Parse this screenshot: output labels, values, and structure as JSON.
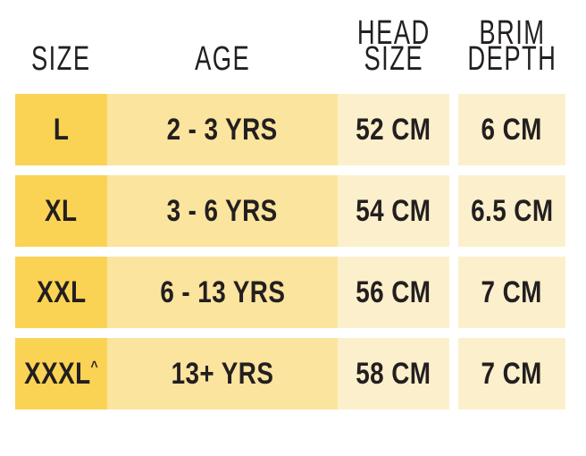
{
  "page": {
    "background": "#FFFFFF"
  },
  "colors": {
    "size_column_fill": "#FBD354",
    "age_column_fill": "#FBE49E",
    "value_column_fill": "#FCF0CC",
    "gutter": "#FFFFFF",
    "text": "#231F20"
  },
  "table": {
    "headers": {
      "size": "SIZE",
      "age": "AGE",
      "head_size_lines": [
        "HEAD",
        "SIZE"
      ],
      "brim_depth_lines": [
        "BRIM",
        "DEPTH"
      ]
    },
    "rows": [
      {
        "size": "L",
        "size_sup": "",
        "age": "2 - 3 YRS",
        "head_size": "52 CM",
        "brim_depth": "6 CM"
      },
      {
        "size": "XL",
        "size_sup": "",
        "age": "3 - 6 YRS",
        "head_size": "54 CM",
        "brim_depth": "6.5 CM"
      },
      {
        "size": "XXL",
        "size_sup": "",
        "age": "6 - 13 YRS",
        "head_size": "56 CM",
        "brim_depth": "7 CM"
      },
      {
        "size": "XXXL",
        "size_sup": "^",
        "age": "13+ YRS",
        "head_size": "58 CM",
        "brim_depth": "7 CM"
      }
    ]
  },
  "chart_data": {
    "type": "table",
    "columns": [
      "SIZE",
      "AGE",
      "HEAD SIZE",
      "BRIM DEPTH"
    ],
    "rows": [
      [
        "L",
        "2 - 3 YRS",
        "52 CM",
        "6 CM"
      ],
      [
        "XL",
        "3 - 6 YRS",
        "54 CM",
        "6.5 CM"
      ],
      [
        "XXL",
        "6 - 13 YRS",
        "56 CM",
        "7 CM"
      ],
      [
        "XXXL^",
        "13+ YRS",
        "58 CM",
        "7 CM"
      ]
    ]
  }
}
